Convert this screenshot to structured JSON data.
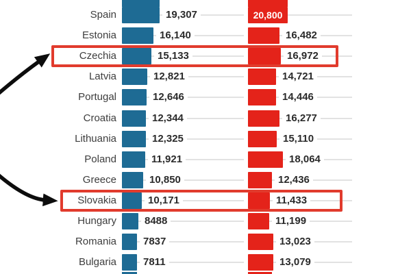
{
  "chart_data": {
    "type": "bar",
    "orientation": "horizontal",
    "series": [
      {
        "name": "blue-series",
        "color": "#1e6b94"
      },
      {
        "name": "red-series",
        "color": "#e4231a"
      }
    ],
    "categories": [
      "Spain",
      "Estonia",
      "Czechia",
      "Latvia",
      "Portugal",
      "Croatia",
      "Lithuania",
      "Poland",
      "Greece",
      "Slovakia",
      "Hungary",
      "Romania",
      "Bulgaria"
    ],
    "rows": [
      {
        "country": "Spain",
        "blue": 19307,
        "blue_label": "19,307",
        "red": 20800,
        "red_label": "20,800",
        "red_label_inside": true,
        "highlighted": false
      },
      {
        "country": "Estonia",
        "blue": 16140,
        "blue_label": "16,140",
        "red": 16482,
        "red_label": "16,482",
        "red_label_inside": false,
        "highlighted": false
      },
      {
        "country": "Czechia",
        "blue": 15133,
        "blue_label": "15,133",
        "red": 16972,
        "red_label": "16,972",
        "red_label_inside": false,
        "highlighted": true
      },
      {
        "country": "Latvia",
        "blue": 12821,
        "blue_label": "12,821",
        "red": 14721,
        "red_label": "14,721",
        "red_label_inside": false,
        "highlighted": false
      },
      {
        "country": "Portugal",
        "blue": 12646,
        "blue_label": "12,646",
        "red": 14446,
        "red_label": "14,446",
        "red_label_inside": false,
        "highlighted": false
      },
      {
        "country": "Croatia",
        "blue": 12344,
        "blue_label": "12,344",
        "red": 16277,
        "red_label": "16,277",
        "red_label_inside": false,
        "highlighted": false
      },
      {
        "country": "Lithuania",
        "blue": 12325,
        "blue_label": "12,325",
        "red": 15110,
        "red_label": "15,110",
        "red_label_inside": false,
        "highlighted": false
      },
      {
        "country": "Poland",
        "blue": 11921,
        "blue_label": "11,921",
        "red": 18064,
        "red_label": "18,064",
        "red_label_inside": false,
        "highlighted": false
      },
      {
        "country": "Greece",
        "blue": 10850,
        "blue_label": "10,850",
        "red": 12436,
        "red_label": "12,436",
        "red_label_inside": false,
        "highlighted": false
      },
      {
        "country": "Slovakia",
        "blue": 10171,
        "blue_label": "10,171",
        "red": 11433,
        "red_label": "11,433",
        "red_label_inside": false,
        "highlighted": true
      },
      {
        "country": "Hungary",
        "blue": 8488,
        "blue_label": "8488",
        "red": 11199,
        "red_label": "11,199",
        "red_label_inside": false,
        "highlighted": false
      },
      {
        "country": "Romania",
        "blue": 7837,
        "blue_label": "7837",
        "red": 13023,
        "red_label": "13,023",
        "red_label_inside": false,
        "highlighted": false
      },
      {
        "country": "Bulgaria",
        "blue": 7811,
        "blue_label": "7811",
        "red": 13079,
        "red_label": "13,079",
        "red_label_inside": false,
        "highlighted": false
      }
    ],
    "top_row_cut_off": true,
    "bottom_row_cut_off": true,
    "grid": "per-row horizontal gridlines",
    "legend_position": "none-visible",
    "title": ""
  },
  "annotations": {
    "highlight_boxes": [
      {
        "target": "Czechia",
        "border_color": "#e13b2d"
      },
      {
        "target": "Slovakia",
        "border_color": "#e13b2d"
      }
    ],
    "arrows": [
      {
        "target": "Czechia",
        "color": "#0d0d0d",
        "direction": "from-left-up-to-row"
      },
      {
        "target": "Slovakia",
        "color": "#0d0d0d",
        "direction": "from-left-down-to-row"
      }
    ]
  },
  "colors": {
    "background": "#ffffff",
    "blue_bar": "#1e6b94",
    "red_bar": "#e4231a",
    "highlight_border": "#e13b2d",
    "gridline": "#e2e2e2",
    "country_text": "#3d3d3d",
    "value_text": "#2b2b2b",
    "inside_value_text": "#ffffff",
    "arrow": "#0d0d0d"
  }
}
